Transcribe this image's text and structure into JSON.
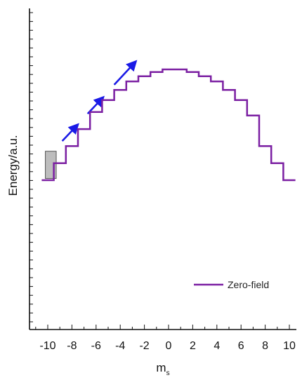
{
  "chart_data": {
    "type": "line",
    "title": "",
    "xlabel": "m",
    "xlabel_sub": "s",
    "ylabel": "Energy/a.u.",
    "xlim": [
      -11,
      11
    ],
    "x_ticks": [
      -10,
      -8,
      -6,
      -4,
      -2,
      0,
      2,
      4,
      6,
      8,
      10
    ],
    "y_ticks_labeled": false,
    "grid": false,
    "legend_position": "bottom-right",
    "series": [
      {
        "name": "Zero-field",
        "color": "#7b1fa2",
        "step": true,
        "x": [
          -10,
          -9,
          -8,
          -7,
          -6,
          -5,
          -4,
          -3,
          -2,
          -1,
          0,
          1,
          2,
          3,
          4,
          5,
          6,
          7,
          8,
          9,
          10
        ],
        "values": [
          0,
          1,
          2,
          3,
          4,
          4.7,
          5.3,
          5.8,
          6.1,
          6.35,
          6.5,
          6.5,
          6.35,
          6.1,
          5.8,
          5.3,
          4.7,
          3.8,
          2,
          1,
          0
        ]
      }
    ],
    "annotations": [
      {
        "type": "arrow",
        "color": "#1a1ae6",
        "from": [
          -8.8,
          2.3
        ],
        "to": [
          -7.6,
          3.2
        ]
      },
      {
        "type": "arrow",
        "color": "#1a1ae6",
        "from": [
          -6.7,
          3.9
        ],
        "to": [
          -5.5,
          4.8
        ]
      },
      {
        "type": "arrow",
        "color": "#1a1ae6",
        "from": [
          -4.5,
          5.6
        ],
        "to": [
          -2.8,
          6.9
        ]
      },
      {
        "type": "rect",
        "fill": "#bdbdbd",
        "stroke": "#555555",
        "x_range": [
          -10.2,
          -9.3
        ],
        "y_range": [
          0.1,
          1.7
        ]
      }
    ]
  }
}
